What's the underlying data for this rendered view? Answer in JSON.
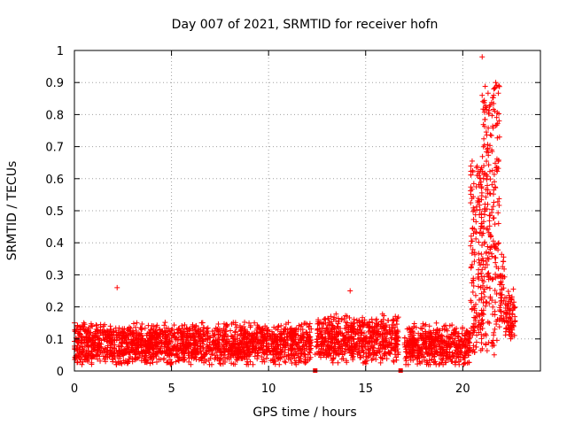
{
  "chart_data": {
    "type": "scatter",
    "title": "Day 007 of 2021, SRMTID for receiver hofn",
    "xlabel": "GPS time / hours",
    "ylabel": "SRMTID / TECUs",
    "xlim": [
      0,
      24
    ],
    "ylim": [
      0,
      1
    ],
    "xticks": [
      0,
      5,
      10,
      15,
      20
    ],
    "xtick_labels": [
      "0",
      "5",
      "10",
      "15",
      "20"
    ],
    "yticks": [
      0,
      0.1,
      0.2,
      0.3,
      0.4,
      0.5,
      0.6,
      0.7,
      0.8,
      0.9,
      1
    ],
    "ytick_labels": [
      "0",
      "0.1",
      "0.2",
      "0.3",
      "0.4",
      "0.5",
      "0.6",
      "0.7",
      "0.8",
      "0.9",
      "1"
    ],
    "grid": true,
    "marker": "plus",
    "color": "#ff0000",
    "series": [
      {
        "name": "SRMTID",
        "segments": [
          {
            "x_range": [
              0.0,
              12.2
            ],
            "typical_range": [
              0.02,
              0.18
            ],
            "base": 0.085
          },
          {
            "x_range": [
              12.4,
              16.7
            ],
            "typical_range": [
              0.02,
              0.2
            ],
            "base": 0.1
          },
          {
            "x_range": [
              17.0,
              20.4
            ],
            "typical_range": [
              0.02,
              0.18
            ],
            "base": 0.08
          },
          {
            "x_range": [
              20.4,
              21.0
            ],
            "typical_range": [
              0.05,
              0.66
            ],
            "base": 0.25
          },
          {
            "x_range": [
              21.0,
              21.9
            ],
            "typical_range": [
              0.05,
              0.9
            ],
            "base": 0.45
          },
          {
            "x_range": [
              21.9,
              22.2
            ],
            "typical_range": [
              0.1,
              0.4
            ],
            "base": 0.25
          },
          {
            "x_range": [
              22.2,
              22.7
            ],
            "typical_range": [
              0.09,
              0.29
            ],
            "base": 0.17
          }
        ],
        "notable_points": [
          {
            "x": 2.2,
            "y": 0.26
          },
          {
            "x": 14.2,
            "y": 0.25
          },
          {
            "x": 21.0,
            "y": 0.98
          },
          {
            "x": 21.0,
            "y": 0.86
          },
          {
            "x": 21.7,
            "y": 0.9
          },
          {
            "x": 21.6,
            "y": 0.88
          }
        ],
        "gap_markers_x": [
          12.4,
          16.8
        ]
      }
    ]
  }
}
